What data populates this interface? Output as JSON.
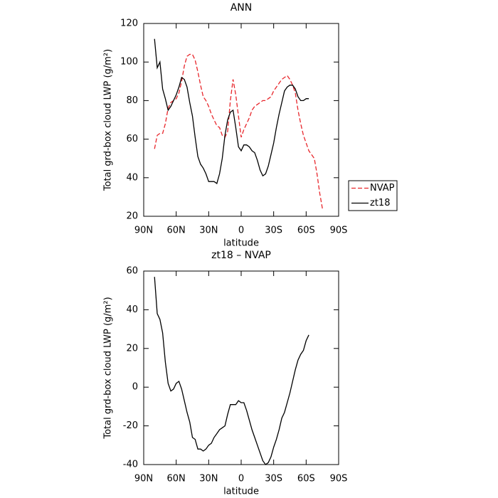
{
  "chart_data": [
    {
      "type": "line",
      "title": "ANN",
      "xlabel": "latitude",
      "ylabel": "Total grd-box cloud LWP (g/m²)",
      "x": [
        80,
        77.5,
        75,
        72.5,
        70,
        67.5,
        65,
        62.5,
        60,
        57.5,
        55,
        52.5,
        50,
        47.5,
        45,
        42.5,
        40,
        37.5,
        35,
        32.5,
        30,
        27.5,
        25,
        22.5,
        20,
        17.5,
        15,
        12.5,
        10,
        7.5,
        5,
        2.5,
        0,
        -2.5,
        -5,
        -7.5,
        -10,
        -12.5,
        -15,
        -17.5,
        -20,
        -22.5,
        -25,
        -27.5,
        -30,
        -32.5,
        -35,
        -37.5,
        -40,
        -42.5,
        -45,
        -47.5,
        -50,
        -52.5,
        -55,
        -57.5,
        -60,
        -62.5,
        -65,
        -67.5,
        -70,
        -72.5,
        -75
      ],
      "series": [
        {
          "name": "NVAP",
          "color": "#e8262b",
          "line_style": "dashed",
          "values": [
            55,
            62,
            63,
            63,
            68,
            76,
            79,
            80,
            81,
            84,
            90,
            98,
            103,
            104,
            104,
            101,
            95,
            88,
            82,
            80,
            77,
            73,
            70,
            67,
            66,
            62,
            61,
            64,
            80,
            91,
            83,
            72,
            61,
            65,
            68,
            71,
            75,
            77,
            78,
            79,
            80,
            80,
            81,
            82,
            85,
            87,
            89,
            91,
            92,
            93,
            91,
            88,
            84,
            75,
            68,
            62,
            58,
            54,
            52,
            50,
            42,
            32,
            24
          ]
        },
        {
          "name": "zt18",
          "color": "#000000",
          "line_style": "solid",
          "values": [
            112,
            97,
            100,
            86,
            81,
            75,
            77,
            80,
            83,
            87,
            92,
            91,
            87,
            79,
            72,
            61,
            51,
            47,
            45,
            42,
            38,
            38,
            38,
            37,
            42,
            50,
            62,
            70,
            74,
            75,
            66,
            56,
            54,
            57,
            57,
            56,
            54,
            53,
            49,
            44,
            41,
            42,
            46,
            52,
            58,
            66,
            73,
            79,
            85,
            87,
            88,
            88,
            86,
            82,
            80,
            80,
            81,
            81,
            null,
            null,
            null,
            null,
            null
          ]
        }
      ],
      "xlim": [
        90,
        -90
      ],
      "xticks": [
        {
          "value": 90,
          "label": "90N"
        },
        {
          "value": 60,
          "label": "60N"
        },
        {
          "value": 30,
          "label": "30N"
        },
        0,
        {
          "value": -30,
          "label": "30S"
        },
        {
          "value": -60,
          "label": "60S"
        },
        {
          "value": -90,
          "label": "90S"
        }
      ],
      "ylim": [
        20,
        120
      ],
      "yticks": [
        20,
        40,
        60,
        80,
        100,
        120
      ],
      "legend": "right"
    },
    {
      "type": "line",
      "title": "zt18 – NVAP",
      "xlabel": "latitude",
      "ylabel": "Total grd-box cloud LWP (g/m²)",
      "x": [
        80,
        77.5,
        75,
        72.5,
        70,
        67.5,
        65,
        62.5,
        60,
        57.5,
        55,
        52.5,
        50,
        47.5,
        45,
        42.5,
        40,
        37.5,
        35,
        32.5,
        30,
        27.5,
        25,
        22.5,
        20,
        17.5,
        15,
        12.5,
        10,
        7.5,
        5,
        2.5,
        0,
        -2.5,
        -5,
        -7.5,
        -10,
        -12.5,
        -15,
        -17.5,
        -20,
        -22.5,
        -25,
        -27.5,
        -30,
        -32.5,
        -35,
        -37.5,
        -40,
        -42.5,
        -45,
        -47.5,
        -50,
        -52.5,
        -55,
        -57.5,
        -60,
        -62.5,
        -65,
        -67.5,
        -70,
        -72.5,
        -75
      ],
      "color": "#000000",
      "line_style": "solid",
      "values": [
        57,
        38,
        35,
        28,
        13,
        2,
        -2,
        -1,
        2,
        3,
        -1,
        -7,
        -13,
        -18,
        -26,
        -27,
        -32,
        -32,
        -33,
        -32,
        -30,
        -29,
        -26,
        -24,
        -22,
        -21,
        -20,
        -14,
        -9,
        -9,
        -9,
        -7,
        -8,
        -8,
        -12,
        -17,
        -22,
        -26,
        -30,
        -34,
        -38,
        -40,
        -39,
        -36,
        -31,
        -27,
        -22,
        -16,
        -13,
        -8,
        -3,
        3,
        9,
        14,
        17,
        19,
        24,
        27,
        null,
        null,
        null,
        null,
        null
      ],
      "xlim": [
        90,
        -90
      ],
      "xticks": [
        {
          "value": 90,
          "label": "90N"
        },
        {
          "value": 60,
          "label": "60N"
        },
        {
          "value": 30,
          "label": "30N"
        },
        0,
        {
          "value": -30,
          "label": "30S"
        },
        {
          "value": -60,
          "label": "60S"
        },
        {
          "value": -90,
          "label": "90S"
        }
      ],
      "ylim": [
        -40,
        60
      ],
      "yticks": [
        -40,
        -20,
        0,
        20,
        40,
        60
      ]
    }
  ]
}
